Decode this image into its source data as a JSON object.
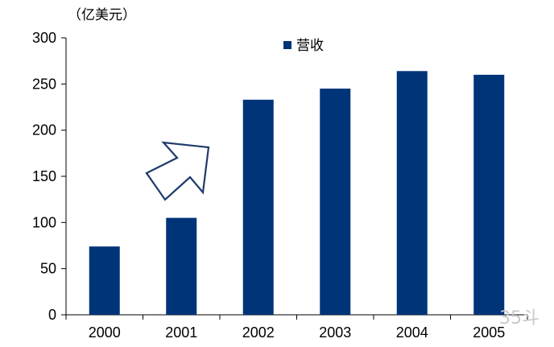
{
  "chart_data": {
    "type": "bar",
    "unit_label": "（亿美元）",
    "categories": [
      "2000",
      "2001",
      "2002",
      "2003",
      "2004",
      "2005"
    ],
    "series": [
      {
        "name": "营收",
        "values": [
          74,
          105,
          233,
          245,
          264,
          260
        ],
        "color": "#003478"
      }
    ],
    "ylim": [
      0,
      300
    ],
    "yticks": [
      0,
      50,
      100,
      150,
      200,
      250,
      300
    ],
    "grid": false,
    "legend_position": "top-center",
    "annotation": "upward-arrow"
  },
  "watermark": {
    "text": "35斗"
  }
}
